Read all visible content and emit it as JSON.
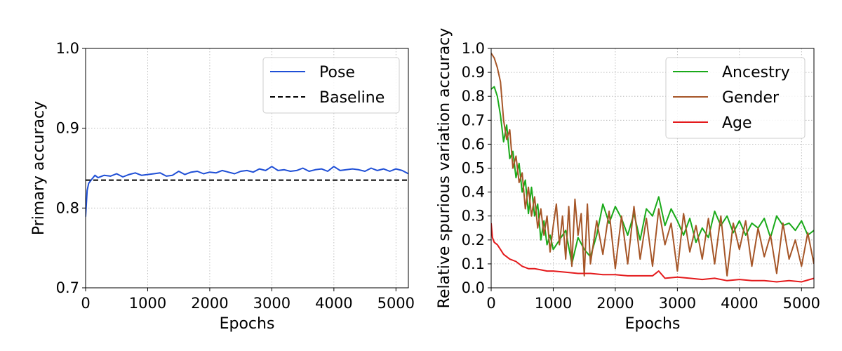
{
  "chart_data": [
    {
      "type": "line",
      "xlabel": "Epochs",
      "ylabel": "Primary accuracy",
      "xlim": [
        0,
        5200
      ],
      "ylim": [
        0.7,
        1.0
      ],
      "xticks": [
        0,
        1000,
        2000,
        3000,
        4000,
        5000
      ],
      "xtick_labels": [
        "0",
        "1000",
        "2000",
        "3000",
        "4000",
        "5000"
      ],
      "yticks": [
        0.7,
        0.8,
        0.9,
        1.0
      ],
      "ytick_labels": [
        "0.7",
        "0.8",
        "0.9",
        "1.0"
      ],
      "grid": true,
      "legend_position": "top-right",
      "series": [
        {
          "name": "Pose",
          "color": "#1f4fd6",
          "style": "solid",
          "x": [
            0,
            25,
            50,
            100,
            150,
            200,
            300,
            400,
            500,
            600,
            700,
            800,
            900,
            1000,
            1100,
            1200,
            1300,
            1400,
            1500,
            1600,
            1700,
            1800,
            1900,
            2000,
            2100,
            2200,
            2300,
            2400,
            2500,
            2600,
            2700,
            2800,
            2900,
            3000,
            3100,
            3200,
            3300,
            3400,
            3500,
            3600,
            3700,
            3800,
            3900,
            4000,
            4100,
            4200,
            4300,
            4400,
            4500,
            4600,
            4700,
            4800,
            4900,
            5000,
            5100,
            5200
          ],
          "y": [
            0.789,
            0.822,
            0.831,
            0.836,
            0.841,
            0.838,
            0.841,
            0.84,
            0.843,
            0.839,
            0.842,
            0.844,
            0.841,
            0.842,
            0.843,
            0.844,
            0.84,
            0.841,
            0.846,
            0.842,
            0.845,
            0.846,
            0.843,
            0.845,
            0.844,
            0.847,
            0.845,
            0.843,
            0.846,
            0.847,
            0.845,
            0.849,
            0.847,
            0.852,
            0.847,
            0.848,
            0.846,
            0.847,
            0.85,
            0.846,
            0.848,
            0.849,
            0.846,
            0.852,
            0.847,
            0.848,
            0.849,
            0.848,
            0.846,
            0.85,
            0.847,
            0.849,
            0.846,
            0.849,
            0.847,
            0.843
          ]
        },
        {
          "name": "Baseline",
          "color": "#000000",
          "style": "dashed",
          "x": [
            0,
            5200
          ],
          "y": [
            0.835,
            0.835
          ]
        }
      ]
    },
    {
      "type": "line",
      "xlabel": "Epochs",
      "ylabel": "Relative spurious variation accuracy",
      "xlim": [
        0,
        5200
      ],
      "ylim": [
        0.0,
        1.0
      ],
      "xticks": [
        0,
        1000,
        2000,
        3000,
        4000,
        5000
      ],
      "xtick_labels": [
        "0",
        "1000",
        "2000",
        "3000",
        "4000",
        "5000"
      ],
      "yticks": [
        0.0,
        0.1,
        0.2,
        0.3,
        0.4,
        0.5,
        0.6,
        0.7,
        0.8,
        0.9,
        1.0
      ],
      "ytick_labels": [
        "0.0",
        "0.1",
        "0.2",
        "0.3",
        "0.4",
        "0.5",
        "0.6",
        "0.7",
        "0.8",
        "0.9",
        "1.0"
      ],
      "grid": true,
      "legend_position": "top-right",
      "series": [
        {
          "name": "Ancestry",
          "color": "#1aaa1a",
          "style": "solid",
          "x": [
            0,
            50,
            100,
            150,
            200,
            250,
            300,
            350,
            400,
            450,
            500,
            550,
            600,
            650,
            700,
            750,
            800,
            850,
            900,
            950,
            1000,
            1100,
            1200,
            1300,
            1400,
            1500,
            1600,
            1700,
            1800,
            1900,
            2000,
            2100,
            2200,
            2300,
            2400,
            2500,
            2600,
            2700,
            2800,
            2900,
            3000,
            3100,
            3200,
            3300,
            3400,
            3500,
            3600,
            3700,
            3800,
            3900,
            4000,
            4100,
            4200,
            4300,
            4400,
            4500,
            4600,
            4700,
            4800,
            4900,
            5000,
            5100,
            5200
          ],
          "y": [
            0.83,
            0.84,
            0.8,
            0.72,
            0.61,
            0.68,
            0.54,
            0.57,
            0.46,
            0.52,
            0.4,
            0.45,
            0.31,
            0.42,
            0.3,
            0.35,
            0.2,
            0.28,
            0.18,
            0.22,
            0.16,
            0.2,
            0.24,
            0.1,
            0.21,
            0.16,
            0.13,
            0.22,
            0.35,
            0.27,
            0.34,
            0.29,
            0.22,
            0.31,
            0.2,
            0.33,
            0.3,
            0.38,
            0.26,
            0.33,
            0.28,
            0.22,
            0.29,
            0.19,
            0.25,
            0.21,
            0.32,
            0.26,
            0.3,
            0.23,
            0.28,
            0.22,
            0.27,
            0.25,
            0.29,
            0.21,
            0.3,
            0.26,
            0.27,
            0.24,
            0.28,
            0.22,
            0.24
          ]
        },
        {
          "name": "Gender",
          "color": "#a65628",
          "style": "solid",
          "x": [
            0,
            50,
            100,
            150,
            200,
            250,
            300,
            350,
            400,
            450,
            500,
            550,
            600,
            650,
            700,
            750,
            800,
            850,
            900,
            950,
            1000,
            1050,
            1100,
            1150,
            1200,
            1250,
            1300,
            1350,
            1400,
            1450,
            1500,
            1550,
            1600,
            1700,
            1800,
            1900,
            2000,
            2100,
            2200,
            2300,
            2400,
            2500,
            2600,
            2700,
            2800,
            2900,
            3000,
            3100,
            3200,
            3300,
            3400,
            3500,
            3600,
            3700,
            3800,
            3900,
            4000,
            4100,
            4200,
            4300,
            4400,
            4500,
            4600,
            4700,
            4800,
            4900,
            5000,
            5100,
            5200
          ],
          "y": [
            0.98,
            0.96,
            0.92,
            0.86,
            0.7,
            0.62,
            0.66,
            0.5,
            0.55,
            0.44,
            0.48,
            0.33,
            0.42,
            0.3,
            0.38,
            0.25,
            0.33,
            0.22,
            0.3,
            0.15,
            0.26,
            0.35,
            0.18,
            0.3,
            0.12,
            0.34,
            0.09,
            0.37,
            0.22,
            0.31,
            0.05,
            0.35,
            0.1,
            0.28,
            0.14,
            0.32,
            0.08,
            0.3,
            0.1,
            0.34,
            0.12,
            0.29,
            0.09,
            0.33,
            0.18,
            0.27,
            0.07,
            0.31,
            0.15,
            0.26,
            0.12,
            0.29,
            0.1,
            0.3,
            0.05,
            0.27,
            0.16,
            0.28,
            0.09,
            0.25,
            0.13,
            0.22,
            0.06,
            0.27,
            0.12,
            0.2,
            0.09,
            0.23,
            0.1
          ]
        },
        {
          "name": "Age",
          "color": "#e41a1c",
          "style": "solid",
          "x": [
            0,
            20,
            50,
            100,
            150,
            200,
            300,
            400,
            500,
            600,
            700,
            800,
            900,
            1000,
            1200,
            1400,
            1600,
            1800,
            2000,
            2200,
            2400,
            2600,
            2700,
            2800,
            3000,
            3200,
            3400,
            3600,
            3800,
            4000,
            4200,
            4400,
            4600,
            4800,
            5000,
            5200
          ],
          "y": [
            0.27,
            0.21,
            0.19,
            0.18,
            0.16,
            0.14,
            0.12,
            0.11,
            0.09,
            0.08,
            0.08,
            0.075,
            0.07,
            0.07,
            0.065,
            0.06,
            0.06,
            0.055,
            0.055,
            0.05,
            0.05,
            0.05,
            0.07,
            0.04,
            0.045,
            0.04,
            0.035,
            0.04,
            0.03,
            0.035,
            0.03,
            0.03,
            0.025,
            0.03,
            0.025,
            0.04
          ]
        }
      ]
    }
  ]
}
